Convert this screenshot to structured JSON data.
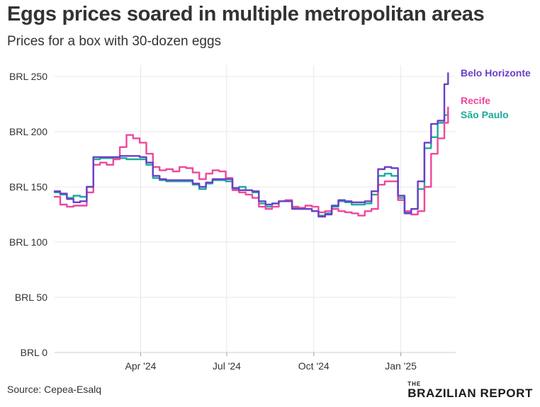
{
  "title": "Eggs prices soared in multiple metropolitan areas",
  "subtitle": "Prices for a box with 30-dozen eggs",
  "source": "Source: Cepea-Esalq",
  "brand": {
    "top": "THE",
    "name": "BRAZILIAN REPORT"
  },
  "chart_data": {
    "type": "line",
    "title": "Eggs prices soared in multiple metropolitan areas",
    "subtitle": "Prices for a box with 30-dozen eggs",
    "xlabel": "",
    "ylabel": "",
    "x_start": "2024-01-01",
    "x_end": "2025-02-28",
    "ylim": [
      0,
      250
    ],
    "y_ticks": [
      0,
      50,
      100,
      150,
      200,
      250
    ],
    "y_tick_labels": [
      "BRL 0",
      "BRL 50",
      "BRL 100",
      "BRL 150",
      "BRL 200",
      "BRL 250"
    ],
    "x_ticks": [
      "2024-04-01",
      "2024-07-01",
      "2024-10-01",
      "2025-01-01"
    ],
    "x_tick_labels": [
      "Apr '24",
      "Jul '24",
      "Oct '24",
      "Jan '25"
    ],
    "grid": true,
    "legend": "direct labels at right end of lines",
    "series": [
      {
        "name": "São Paulo",
        "color": "#1aab9b",
        "points": [
          [
            "2024-01-01",
            145
          ],
          [
            "2024-01-07",
            143
          ],
          [
            "2024-01-14",
            140
          ],
          [
            "2024-01-21",
            142
          ],
          [
            "2024-01-28",
            141
          ],
          [
            "2024-02-04",
            150
          ],
          [
            "2024-02-11",
            175
          ],
          [
            "2024-02-18",
            176
          ],
          [
            "2024-02-25",
            176
          ],
          [
            "2024-03-03",
            176
          ],
          [
            "2024-03-10",
            176
          ],
          [
            "2024-03-17",
            175
          ],
          [
            "2024-03-24",
            175
          ],
          [
            "2024-03-31",
            175
          ],
          [
            "2024-04-07",
            170
          ],
          [
            "2024-04-14",
            158
          ],
          [
            "2024-04-21",
            156
          ],
          [
            "2024-04-28",
            155
          ],
          [
            "2024-05-05",
            155
          ],
          [
            "2024-05-12",
            155
          ],
          [
            "2024-05-19",
            155
          ],
          [
            "2024-05-26",
            152
          ],
          [
            "2024-06-02",
            148
          ],
          [
            "2024-06-09",
            153
          ],
          [
            "2024-06-16",
            156
          ],
          [
            "2024-06-23",
            156
          ],
          [
            "2024-06-30",
            155
          ],
          [
            "2024-07-07",
            148
          ],
          [
            "2024-07-14",
            150
          ],
          [
            "2024-07-21",
            147
          ],
          [
            "2024-07-28",
            145
          ],
          [
            "2024-08-04",
            135
          ],
          [
            "2024-08-11",
            132
          ],
          [
            "2024-08-18",
            135
          ],
          [
            "2024-08-25",
            137
          ],
          [
            "2024-09-01",
            138
          ],
          [
            "2024-09-08",
            131
          ],
          [
            "2024-09-15",
            130
          ],
          [
            "2024-09-22",
            130
          ],
          [
            "2024-09-29",
            128
          ],
          [
            "2024-10-06",
            124
          ],
          [
            "2024-10-13",
            126
          ],
          [
            "2024-10-20",
            132
          ],
          [
            "2024-10-27",
            137
          ],
          [
            "2024-11-03",
            136
          ],
          [
            "2024-11-10",
            134
          ],
          [
            "2024-11-17",
            134
          ],
          [
            "2024-11-24",
            135
          ],
          [
            "2024-12-01",
            143
          ],
          [
            "2024-12-08",
            160
          ],
          [
            "2024-12-15",
            162
          ],
          [
            "2024-12-22",
            160
          ],
          [
            "2024-12-29",
            140
          ],
          [
            "2025-01-05",
            127
          ],
          [
            "2025-01-12",
            130
          ],
          [
            "2025-01-19",
            148
          ],
          [
            "2025-01-26",
            185
          ],
          [
            "2025-02-02",
            195
          ],
          [
            "2025-02-09",
            208
          ],
          [
            "2025-02-16",
            215
          ],
          [
            "2025-02-20",
            218
          ]
        ]
      },
      {
        "name": "Recife",
        "color": "#f0479b",
        "points": [
          [
            "2024-01-01",
            141
          ],
          [
            "2024-01-07",
            134
          ],
          [
            "2024-01-14",
            132
          ],
          [
            "2024-01-21",
            133
          ],
          [
            "2024-01-28",
            133
          ],
          [
            "2024-02-04",
            145
          ],
          [
            "2024-02-11",
            170
          ],
          [
            "2024-02-18",
            172
          ],
          [
            "2024-02-25",
            170
          ],
          [
            "2024-03-03",
            175
          ],
          [
            "2024-03-10",
            186
          ],
          [
            "2024-03-17",
            197
          ],
          [
            "2024-03-24",
            194
          ],
          [
            "2024-03-31",
            190
          ],
          [
            "2024-04-07",
            180
          ],
          [
            "2024-04-14",
            168
          ],
          [
            "2024-04-21",
            165
          ],
          [
            "2024-04-28",
            166
          ],
          [
            "2024-05-05",
            164
          ],
          [
            "2024-05-12",
            168
          ],
          [
            "2024-05-19",
            167
          ],
          [
            "2024-05-26",
            163
          ],
          [
            "2024-06-02",
            157
          ],
          [
            "2024-06-09",
            162
          ],
          [
            "2024-06-16",
            165
          ],
          [
            "2024-06-23",
            164
          ],
          [
            "2024-06-30",
            158
          ],
          [
            "2024-07-07",
            147
          ],
          [
            "2024-07-14",
            145
          ],
          [
            "2024-07-21",
            143
          ],
          [
            "2024-07-28",
            140
          ],
          [
            "2024-08-04",
            132
          ],
          [
            "2024-08-11",
            130
          ],
          [
            "2024-08-18",
            132
          ],
          [
            "2024-08-25",
            137
          ],
          [
            "2024-09-01",
            138
          ],
          [
            "2024-09-08",
            132
          ],
          [
            "2024-09-15",
            131
          ],
          [
            "2024-09-22",
            133
          ],
          [
            "2024-09-29",
            132
          ],
          [
            "2024-10-06",
            127
          ],
          [
            "2024-10-13",
            128
          ],
          [
            "2024-10-20",
            130
          ],
          [
            "2024-10-27",
            128
          ],
          [
            "2024-11-03",
            127
          ],
          [
            "2024-11-10",
            126
          ],
          [
            "2024-11-17",
            124
          ],
          [
            "2024-11-24",
            128
          ],
          [
            "2024-12-01",
            130
          ],
          [
            "2024-12-08",
            152
          ],
          [
            "2024-12-15",
            155
          ],
          [
            "2024-12-22",
            155
          ],
          [
            "2024-12-29",
            138
          ],
          [
            "2025-01-05",
            128
          ],
          [
            "2025-01-12",
            125
          ],
          [
            "2025-01-19",
            128
          ],
          [
            "2025-01-26",
            150
          ],
          [
            "2025-02-02",
            180
          ],
          [
            "2025-02-09",
            194
          ],
          [
            "2025-02-16",
            208
          ],
          [
            "2025-02-20",
            222
          ]
        ]
      },
      {
        "name": "Belo Horizonte",
        "color": "#6a3fc7",
        "points": [
          [
            "2024-01-01",
            146
          ],
          [
            "2024-01-07",
            144
          ],
          [
            "2024-01-14",
            139
          ],
          [
            "2024-01-21",
            136
          ],
          [
            "2024-01-28",
            137
          ],
          [
            "2024-02-04",
            150
          ],
          [
            "2024-02-11",
            177
          ],
          [
            "2024-02-18",
            177
          ],
          [
            "2024-02-25",
            177
          ],
          [
            "2024-03-03",
            177
          ],
          [
            "2024-03-10",
            178
          ],
          [
            "2024-03-17",
            178
          ],
          [
            "2024-03-24",
            178
          ],
          [
            "2024-03-31",
            177
          ],
          [
            "2024-04-07",
            172
          ],
          [
            "2024-04-14",
            160
          ],
          [
            "2024-04-21",
            157
          ],
          [
            "2024-04-28",
            156
          ],
          [
            "2024-05-05",
            156
          ],
          [
            "2024-05-12",
            156
          ],
          [
            "2024-05-19",
            156
          ],
          [
            "2024-05-26",
            153
          ],
          [
            "2024-06-02",
            150
          ],
          [
            "2024-06-09",
            154
          ],
          [
            "2024-06-16",
            157
          ],
          [
            "2024-06-23",
            157
          ],
          [
            "2024-06-30",
            157
          ],
          [
            "2024-07-07",
            149
          ],
          [
            "2024-07-14",
            147
          ],
          [
            "2024-07-21",
            147
          ],
          [
            "2024-07-28",
            146
          ],
          [
            "2024-08-04",
            137
          ],
          [
            "2024-08-11",
            134
          ],
          [
            "2024-08-18",
            135
          ],
          [
            "2024-08-25",
            137
          ],
          [
            "2024-09-01",
            137
          ],
          [
            "2024-09-08",
            130
          ],
          [
            "2024-09-15",
            130
          ],
          [
            "2024-09-22",
            130
          ],
          [
            "2024-09-29",
            128
          ],
          [
            "2024-10-06",
            123
          ],
          [
            "2024-10-13",
            125
          ],
          [
            "2024-10-20",
            133
          ],
          [
            "2024-10-27",
            138
          ],
          [
            "2024-11-03",
            137
          ],
          [
            "2024-11-10",
            136
          ],
          [
            "2024-11-17",
            136
          ],
          [
            "2024-11-24",
            137
          ],
          [
            "2024-12-01",
            146
          ],
          [
            "2024-12-08",
            166
          ],
          [
            "2024-12-15",
            168
          ],
          [
            "2024-12-22",
            167
          ],
          [
            "2024-12-29",
            142
          ],
          [
            "2025-01-05",
            126
          ],
          [
            "2025-01-12",
            130
          ],
          [
            "2025-01-19",
            155
          ],
          [
            "2025-01-26",
            190
          ],
          [
            "2025-02-02",
            207
          ],
          [
            "2025-02-09",
            210
          ],
          [
            "2025-02-16",
            243
          ],
          [
            "2025-02-20",
            253
          ]
        ]
      }
    ]
  }
}
